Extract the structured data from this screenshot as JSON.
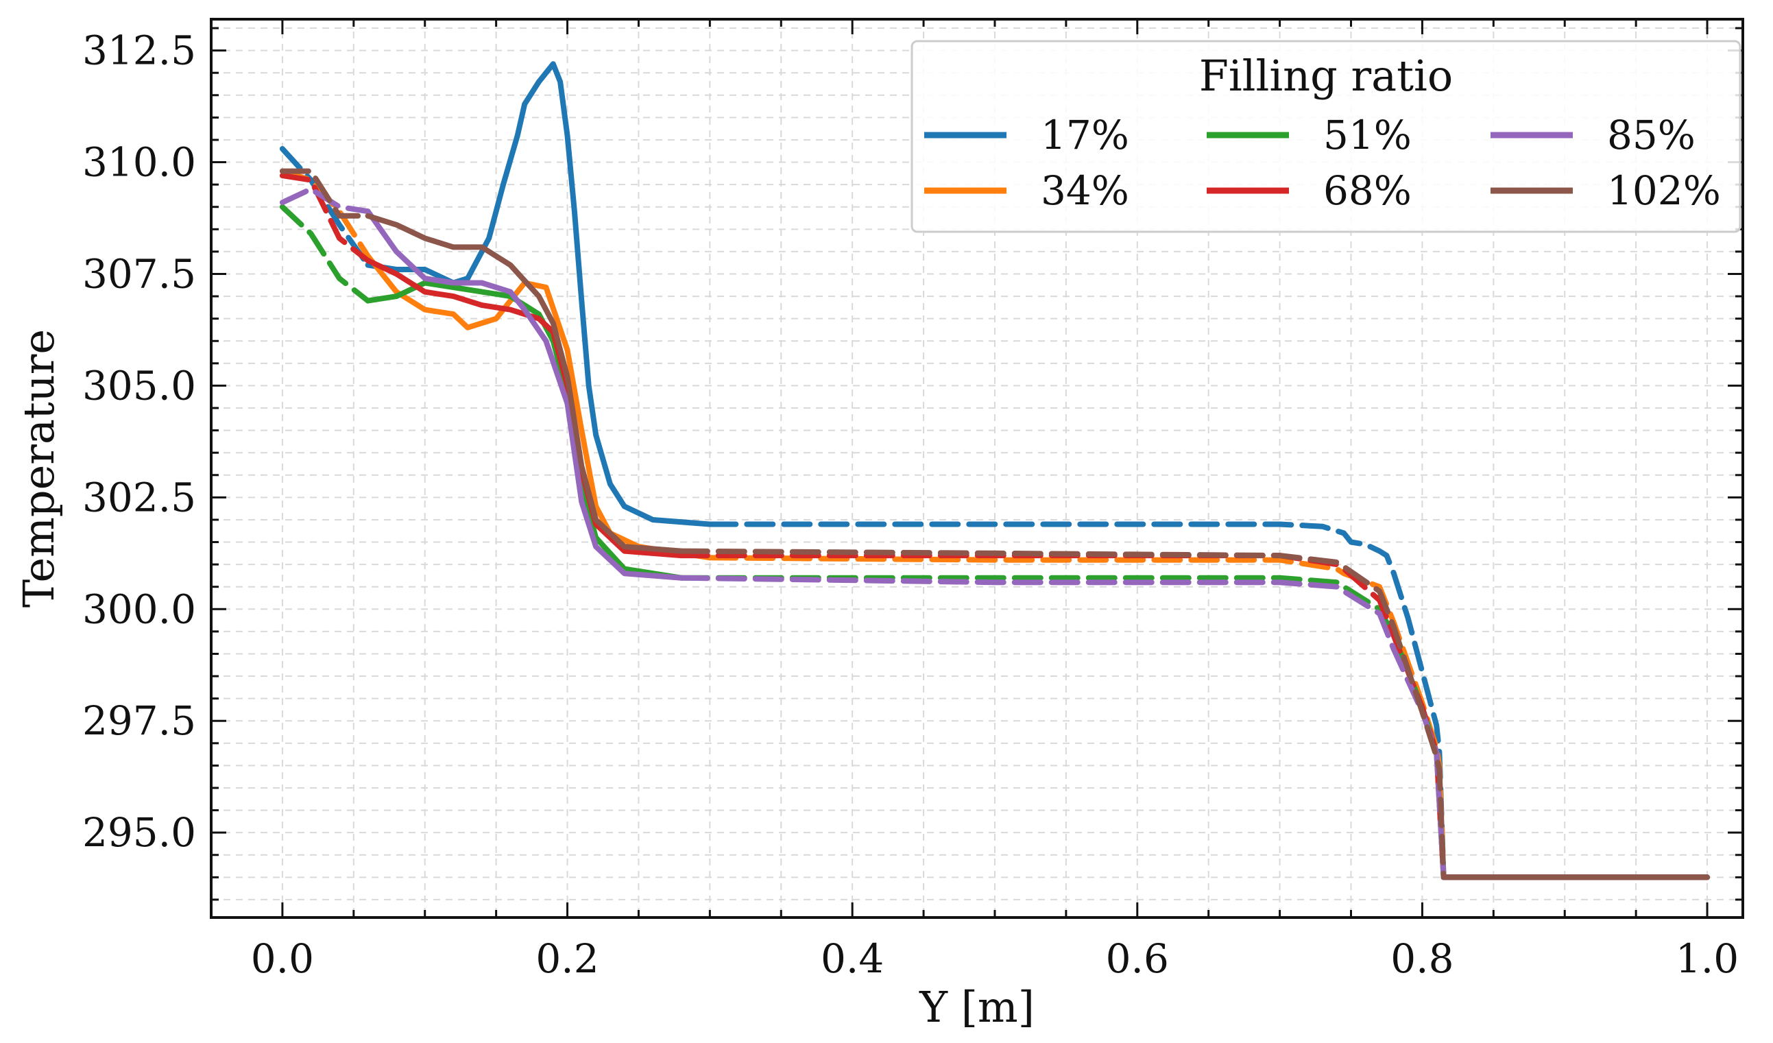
{
  "chart_data": {
    "type": "line",
    "title": "",
    "xlabel": "Y [m]",
    "ylabel": "Temperature",
    "xlim": [
      -0.05,
      1.025
    ],
    "ylim": [
      293.1,
      313.2
    ],
    "xticks": [
      0.0,
      0.2,
      0.4,
      0.6,
      0.8,
      1.0
    ],
    "xtick_labels": [
      "0.0",
      "0.2",
      "0.4",
      "0.6",
      "0.8",
      "1.0"
    ],
    "yticks": [
      295.0,
      297.5,
      300.0,
      302.5,
      305.0,
      307.5,
      310.0,
      312.5
    ],
    "ytick_labels": [
      "295.0",
      "297.5",
      "300.0",
      "302.5",
      "305.0",
      "307.5",
      "310.0",
      "312.5"
    ],
    "grid": true,
    "legend": {
      "title": "Filling ratio",
      "placement": "top-right",
      "columns": 3
    },
    "series": [
      {
        "name": "17%",
        "color": "#1f77b4",
        "points": [
          [
            0.0,
            310.3
          ],
          [
            0.02,
            309.6
          ],
          [
            0.04,
            308.6
          ],
          [
            0.06,
            307.7
          ],
          [
            0.08,
            307.6
          ],
          [
            0.1,
            307.6
          ],
          [
            0.12,
            307.3
          ],
          [
            0.13,
            307.4
          ],
          [
            0.145,
            308.3
          ],
          [
            0.155,
            309.5
          ],
          [
            0.165,
            310.6
          ],
          [
            0.17,
            311.3
          ],
          [
            0.18,
            311.8
          ],
          [
            0.19,
            312.2
          ],
          [
            0.195,
            311.8
          ],
          [
            0.2,
            310.6
          ],
          [
            0.205,
            308.9
          ],
          [
            0.21,
            306.9
          ],
          [
            0.215,
            305.0
          ],
          [
            0.22,
            303.9
          ],
          [
            0.23,
            302.8
          ],
          [
            0.24,
            302.3
          ],
          [
            0.26,
            302.0
          ],
          [
            0.3,
            301.9
          ],
          [
            0.5,
            301.9
          ],
          [
            0.6,
            301.9
          ],
          [
            0.7,
            301.9
          ],
          [
            0.73,
            301.85
          ],
          [
            0.745,
            301.7
          ],
          [
            0.75,
            301.5
          ],
          [
            0.76,
            301.45
          ],
          [
            0.77,
            301.3
          ],
          [
            0.775,
            301.2
          ],
          [
            0.78,
            300.8
          ],
          [
            0.79,
            299.8
          ],
          [
            0.8,
            298.6
          ],
          [
            0.81,
            297.4
          ],
          [
            0.812,
            296.8
          ],
          [
            0.815,
            294.0
          ],
          [
            1.0,
            294.0
          ]
        ]
      },
      {
        "name": "34%",
        "color": "#ff7f0e",
        "points": [
          [
            0.0,
            309.8
          ],
          [
            0.02,
            309.6
          ],
          [
            0.04,
            308.9
          ],
          [
            0.06,
            307.9
          ],
          [
            0.08,
            307.1
          ],
          [
            0.1,
            306.7
          ],
          [
            0.12,
            306.6
          ],
          [
            0.13,
            306.3
          ],
          [
            0.15,
            306.5
          ],
          [
            0.17,
            307.3
          ],
          [
            0.185,
            307.2
          ],
          [
            0.2,
            305.8
          ],
          [
            0.21,
            304.0
          ],
          [
            0.22,
            302.3
          ],
          [
            0.23,
            301.7
          ],
          [
            0.25,
            301.4
          ],
          [
            0.3,
            301.15
          ],
          [
            0.5,
            301.1
          ],
          [
            0.7,
            301.1
          ],
          [
            0.74,
            300.9
          ],
          [
            0.745,
            300.8
          ],
          [
            0.77,
            300.5
          ],
          [
            0.78,
            299.7
          ],
          [
            0.8,
            297.9
          ],
          [
            0.81,
            296.9
          ],
          [
            0.812,
            296.5
          ],
          [
            0.815,
            294.0
          ],
          [
            1.0,
            294.0
          ]
        ]
      },
      {
        "name": "51%",
        "color": "#2ca02c",
        "points": [
          [
            0.0,
            309.0
          ],
          [
            0.02,
            308.4
          ],
          [
            0.04,
            307.4
          ],
          [
            0.06,
            306.9
          ],
          [
            0.08,
            307.0
          ],
          [
            0.1,
            307.3
          ],
          [
            0.12,
            307.2
          ],
          [
            0.14,
            307.1
          ],
          [
            0.16,
            307.0
          ],
          [
            0.18,
            306.6
          ],
          [
            0.19,
            306.0
          ],
          [
            0.2,
            304.8
          ],
          [
            0.21,
            302.8
          ],
          [
            0.22,
            301.6
          ],
          [
            0.24,
            300.9
          ],
          [
            0.28,
            300.7
          ],
          [
            0.5,
            300.7
          ],
          [
            0.7,
            300.7
          ],
          [
            0.74,
            300.6
          ],
          [
            0.745,
            300.5
          ],
          [
            0.77,
            300.0
          ],
          [
            0.78,
            299.4
          ],
          [
            0.8,
            297.8
          ],
          [
            0.81,
            296.8
          ],
          [
            0.815,
            294.0
          ],
          [
            1.0,
            294.0
          ]
        ]
      },
      {
        "name": "68%",
        "color": "#d62728",
        "points": [
          [
            0.0,
            309.7
          ],
          [
            0.02,
            309.6
          ],
          [
            0.04,
            308.3
          ],
          [
            0.06,
            307.8
          ],
          [
            0.08,
            307.5
          ],
          [
            0.1,
            307.1
          ],
          [
            0.12,
            307.0
          ],
          [
            0.14,
            306.8
          ],
          [
            0.16,
            306.7
          ],
          [
            0.18,
            306.5
          ],
          [
            0.19,
            306.2
          ],
          [
            0.2,
            305.0
          ],
          [
            0.21,
            303.1
          ],
          [
            0.22,
            301.9
          ],
          [
            0.24,
            301.3
          ],
          [
            0.28,
            301.2
          ],
          [
            0.5,
            301.2
          ],
          [
            0.7,
            301.2
          ],
          [
            0.74,
            301.0
          ],
          [
            0.745,
            300.9
          ],
          [
            0.77,
            300.2
          ],
          [
            0.78,
            299.4
          ],
          [
            0.8,
            297.8
          ],
          [
            0.81,
            296.8
          ],
          [
            0.815,
            294.0
          ],
          [
            1.0,
            294.0
          ]
        ]
      },
      {
        "name": "85%",
        "color": "#9467bd",
        "points": [
          [
            0.0,
            309.1
          ],
          [
            0.02,
            309.4
          ],
          [
            0.04,
            309.0
          ],
          [
            0.06,
            308.9
          ],
          [
            0.08,
            308.0
          ],
          [
            0.1,
            307.4
          ],
          [
            0.12,
            307.3
          ],
          [
            0.14,
            307.3
          ],
          [
            0.16,
            307.1
          ],
          [
            0.17,
            306.7
          ],
          [
            0.185,
            306.0
          ],
          [
            0.2,
            304.6
          ],
          [
            0.21,
            302.4
          ],
          [
            0.22,
            301.4
          ],
          [
            0.24,
            300.8
          ],
          [
            0.28,
            300.7
          ],
          [
            0.5,
            300.6
          ],
          [
            0.7,
            300.6
          ],
          [
            0.74,
            300.5
          ],
          [
            0.745,
            300.4
          ],
          [
            0.77,
            299.9
          ],
          [
            0.78,
            299.1
          ],
          [
            0.8,
            297.7
          ],
          [
            0.81,
            296.8
          ],
          [
            0.815,
            294.0
          ],
          [
            1.0,
            294.0
          ]
        ]
      },
      {
        "name": "102%",
        "color": "#8c564b",
        "points": [
          [
            0.0,
            309.8
          ],
          [
            0.02,
            309.8
          ],
          [
            0.04,
            308.8
          ],
          [
            0.06,
            308.8
          ],
          [
            0.08,
            308.6
          ],
          [
            0.1,
            308.3
          ],
          [
            0.12,
            308.1
          ],
          [
            0.14,
            308.1
          ],
          [
            0.16,
            307.7
          ],
          [
            0.18,
            307.0
          ],
          [
            0.19,
            306.4
          ],
          [
            0.2,
            305.2
          ],
          [
            0.21,
            303.2
          ],
          [
            0.22,
            302.0
          ],
          [
            0.24,
            301.4
          ],
          [
            0.28,
            301.3
          ],
          [
            0.5,
            301.25
          ],
          [
            0.7,
            301.2
          ],
          [
            0.74,
            301.05
          ],
          [
            0.745,
            300.95
          ],
          [
            0.77,
            300.4
          ],
          [
            0.78,
            299.6
          ],
          [
            0.8,
            297.7
          ],
          [
            0.81,
            296.7
          ],
          [
            0.812,
            296.4
          ],
          [
            0.815,
            294.0
          ],
          [
            1.0,
            294.0
          ]
        ]
      }
    ]
  }
}
